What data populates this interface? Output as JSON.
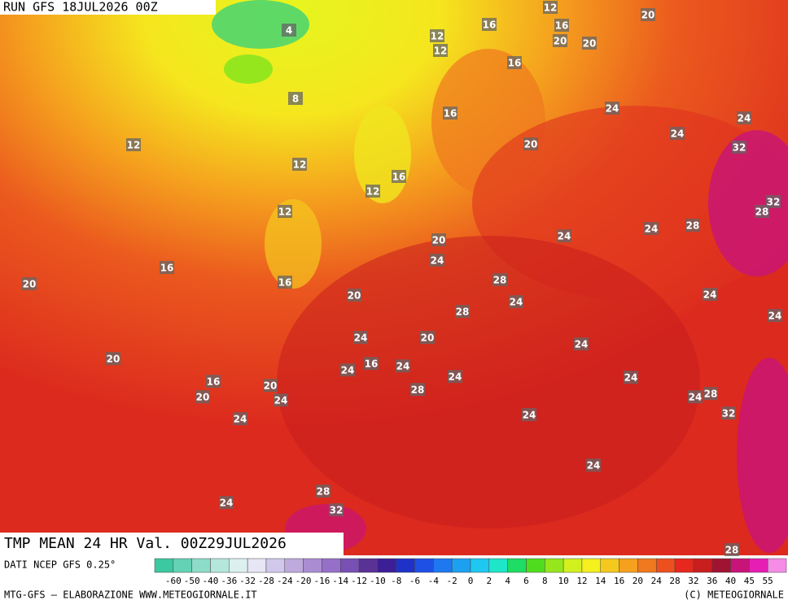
{
  "header": {
    "run": "RUN GFS 18JUL2026 00Z"
  },
  "map": {
    "labels": [
      12,
      20,
      16,
      20,
      20,
      4,
      12,
      12,
      16,
      16,
      8,
      24,
      16,
      24,
      24,
      12,
      20,
      32,
      12,
      16,
      12,
      32,
      28,
      12,
      24,
      28,
      24,
      20,
      24,
      16,
      28,
      20,
      16,
      20,
      24,
      28,
      24,
      24,
      24,
      20,
      24,
      20,
      16,
      24,
      24,
      24,
      24,
      16,
      20,
      28,
      20,
      24,
      24,
      28,
      24,
      24,
      32,
      24,
      28,
      24,
      32,
      28
    ]
  },
  "legend": {
    "title": "TMP MEAN 24 HR Val. 00Z29JUL2026",
    "source": "DATI NCEP GFS 0.25°",
    "ticks": [
      -60,
      -50,
      -40,
      -36,
      -32,
      -28,
      -24,
      -20,
      -16,
      -14,
      -12,
      -10,
      -8,
      -6,
      -4,
      -2,
      0,
      2,
      4,
      6,
      8,
      10,
      12,
      14,
      16,
      20,
      24,
      28,
      32,
      36,
      40,
      45,
      55
    ],
    "colors": [
      "#3cc8a0",
      "#64d2b4",
      "#8cdcc8",
      "#b4e6dc",
      "#dcf0f0",
      "#e6e6f5",
      "#d2c8eb",
      "#beaadc",
      "#aa8cd2",
      "#9670c8",
      "#7850b4",
      "#5a3296",
      "#3c1e96",
      "#1e32c8",
      "#1e50e6",
      "#1e78f0",
      "#1ea0f0",
      "#1ec8f0",
      "#1ee6c8",
      "#1edc64",
      "#50dc1e",
      "#96e61e",
      "#d2f01e",
      "#f5f01e",
      "#f5c81e",
      "#f5a01e",
      "#f0781e",
      "#eb501e",
      "#e6281e",
      "#c81e1e",
      "#a01432",
      "#c81478",
      "#e61eb4",
      "#f58ce6"
    ]
  },
  "footer": {
    "credit": "MTG-GFS — ELABORAZIONE WWW.METEOGIORNALE.IT",
    "copyright": "(C) METEOGIORNALE"
  }
}
